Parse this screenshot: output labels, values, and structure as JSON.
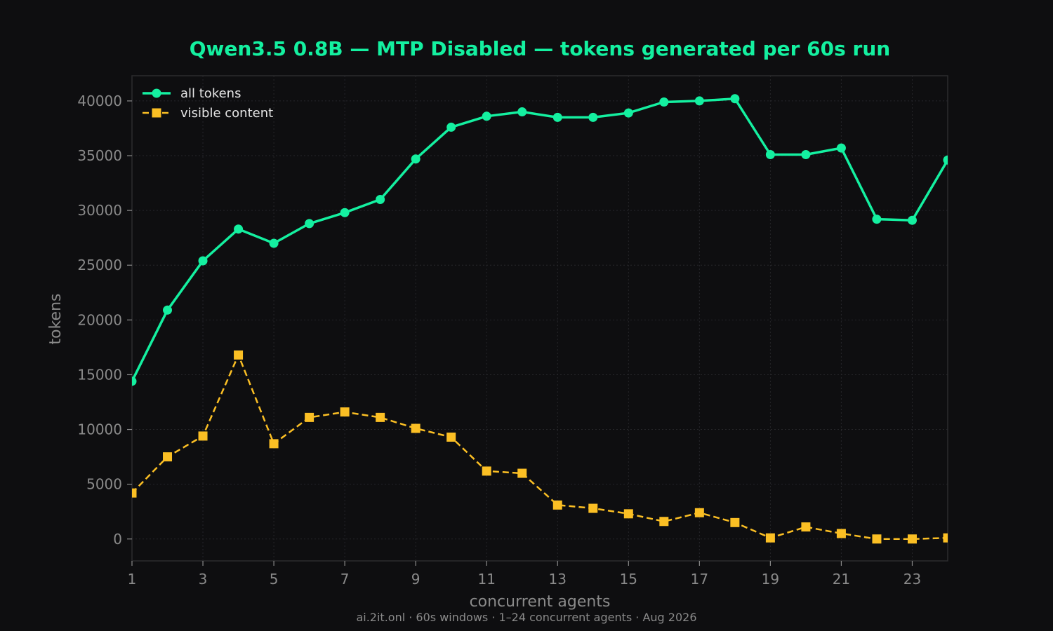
{
  "chart_data": {
    "type": "line",
    "title": "Qwen3.5 0.8B — MTP Disabled — tokens generated per 60s run",
    "xlabel": "concurrent agents",
    "ylabel": "tokens",
    "footer": "ai.2it.onl · 60s windows · 1–24 concurrent agents · Aug 2026",
    "x": [
      1,
      2,
      3,
      4,
      5,
      6,
      7,
      8,
      9,
      10,
      11,
      12,
      13,
      14,
      15,
      16,
      17,
      18,
      19,
      20,
      21,
      22,
      23,
      24
    ],
    "xlim": [
      1,
      24
    ],
    "ylim": [
      -2000,
      42300
    ],
    "xticks": [
      1,
      3,
      5,
      7,
      9,
      11,
      13,
      15,
      17,
      19,
      21,
      23
    ],
    "yticks": [
      0,
      5000,
      10000,
      15000,
      20000,
      25000,
      30000,
      35000,
      40000
    ],
    "grid": true,
    "legend_position": "top-left",
    "series": [
      {
        "name": "all tokens",
        "color": "#14f0a0",
        "marker": "circle",
        "line_style": "solid",
        "values": [
          14400,
          20900,
          25400,
          28300,
          27000,
          28800,
          29800,
          31000,
          34700,
          37600,
          38600,
          39000,
          38500,
          38500,
          38900,
          39900,
          40000,
          40200,
          35100,
          35100,
          35700,
          29200,
          29100,
          34600
        ]
      },
      {
        "name": "visible content",
        "color": "#fbbf24",
        "marker": "square",
        "line_style": "dashed",
        "values": [
          4200,
          7500,
          9400,
          16800,
          8700,
          11100,
          11600,
          11100,
          10100,
          9300,
          6200,
          6000,
          3100,
          2800,
          2300,
          1600,
          2400,
          1500,
          100,
          1100,
          500,
          0,
          0,
          100
        ]
      }
    ]
  },
  "colors": {
    "background": "#0e0e10",
    "title": "#14f0a0",
    "axis_text": "#8a8a8a",
    "frame": "#2c2c2e",
    "grid": "#26262a",
    "legend_text": "#e5e5e5",
    "footer_text": "#8a8a8a"
  }
}
